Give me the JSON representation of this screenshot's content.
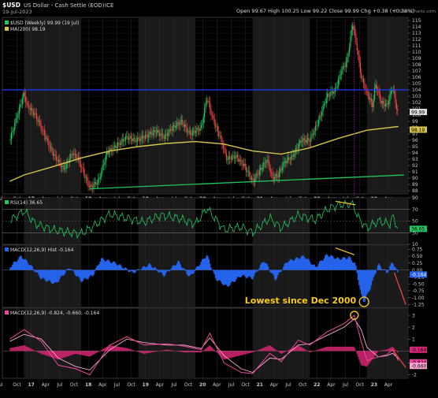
{
  "header": {
    "symbol": "$USD",
    "name": "US Dollar - Cash Settle (EOD)",
    "exchange": "ICE",
    "date": "19-Jul-2023",
    "ohlc_text": "Open 99.67  High 100.25  Low 99.22  Close 99.99  Chg +0.38 (+0.38%)",
    "watermark": "© StockCharts.com",
    "legend_main": "$USD (Weekly) 99.99 (19 Jul)",
    "legend_ma": "MA(200) 98.19",
    "colors": {
      "price_up": "#22c55e",
      "price_down": "#ef4444",
      "ma": "#d4c44a",
      "resistance": "#1e3aff",
      "support": "#22c55e"
    }
  },
  "chart_data": [
    {
      "type": "candlestick",
      "panel": "price",
      "x_tick_labels": [
        "Oct",
        "17",
        "Apr",
        "Jul",
        "Oct",
        "18",
        "Apr",
        "Jul",
        "Oct",
        "19",
        "Apr",
        "Jul",
        "Oct",
        "20",
        "Apr",
        "Jul",
        "Oct",
        "21",
        "Apr",
        "Jul",
        "Oct",
        "22",
        "Apr",
        "Jul",
        "Oct",
        "23",
        "Apr",
        "Jul"
      ],
      "y_ticks": [
        88,
        89,
        90,
        91,
        92,
        93,
        94,
        95,
        96,
        97,
        98,
        99,
        100,
        101,
        102,
        103,
        104,
        105,
        106,
        107,
        108,
        109,
        110,
        111,
        112,
        113,
        114,
        115
      ],
      "ylim": [
        87.5,
        115.5
      ],
      "last_price_label": "99.99",
      "ma_label": "98.19",
      "price_path": [
        [
          2016.75,
          96
        ],
        [
          2016.85,
          99
        ],
        [
          2016.95,
          102
        ],
        [
          2017.0,
          103.5
        ],
        [
          2017.05,
          101.5
        ],
        [
          2017.2,
          100
        ],
        [
          2017.35,
          97
        ],
        [
          2017.5,
          94
        ],
        [
          2017.65,
          92
        ],
        [
          2017.7,
          91.5
        ],
        [
          2017.85,
          94
        ],
        [
          2017.95,
          93
        ],
        [
          2018.1,
          89.5
        ],
        [
          2018.15,
          88.5
        ],
        [
          2018.3,
          89.5
        ],
        [
          2018.45,
          94
        ],
        [
          2018.6,
          95
        ],
        [
          2018.8,
          96.5
        ],
        [
          2018.95,
          96
        ],
        [
          2019.1,
          96.5
        ],
        [
          2019.3,
          97.5
        ],
        [
          2019.45,
          96.5
        ],
        [
          2019.6,
          98
        ],
        [
          2019.75,
          99
        ],
        [
          2019.9,
          97
        ],
        [
          2020.1,
          98
        ],
        [
          2020.2,
          102.8
        ],
        [
          2020.3,
          99.5
        ],
        [
          2020.45,
          96
        ],
        [
          2020.55,
          93
        ],
        [
          2020.7,
          93.5
        ],
        [
          2020.85,
          92
        ],
        [
          2021.0,
          89.5
        ],
        [
          2021.15,
          91.5
        ],
        [
          2021.25,
          93
        ],
        [
          2021.35,
          90
        ],
        [
          2021.45,
          90.5
        ],
        [
          2021.55,
          92.5
        ],
        [
          2021.7,
          93.5
        ],
        [
          2021.85,
          96
        ],
        [
          2022.0,
          96
        ],
        [
          2022.15,
          99
        ],
        [
          2022.3,
          103
        ],
        [
          2022.45,
          104
        ],
        [
          2022.55,
          107
        ],
        [
          2022.65,
          108.5
        ],
        [
          2022.75,
          114.5
        ],
        [
          2022.82,
          111
        ],
        [
          2022.9,
          106
        ],
        [
          2023.0,
          103.5
        ],
        [
          2023.1,
          101.5
        ],
        [
          2023.15,
          105
        ],
        [
          2023.25,
          102
        ],
        [
          2023.35,
          101.5
        ],
        [
          2023.45,
          104.5
        ],
        [
          2023.5,
          102
        ],
        [
          2023.55,
          99.99
        ]
      ],
      "ma200_path": [
        [
          2016.75,
          89.5
        ],
        [
          2017.0,
          90.5
        ],
        [
          2017.5,
          91.8
        ],
        [
          2018.0,
          93.2
        ],
        [
          2018.5,
          94.3
        ],
        [
          2019.0,
          95.0
        ],
        [
          2019.5,
          95.5
        ],
        [
          2020.0,
          95.8
        ],
        [
          2020.5,
          95.4
        ],
        [
          2021.0,
          94.3
        ],
        [
          2021.5,
          93.8
        ],
        [
          2022.0,
          94.8
        ],
        [
          2022.5,
          96.3
        ],
        [
          2023.0,
          97.6
        ],
        [
          2023.55,
          98.19
        ]
      ],
      "resistance_level": 104,
      "support_line": [
        [
          2018.15,
          88.3
        ],
        [
          2023.65,
          90.5
        ]
      ]
    },
    {
      "type": "line",
      "panel": "rsi",
      "legend": "RSI(14) 36.65",
      "y_ticks": [
        10,
        30,
        50,
        70,
        90
      ],
      "ylim": [
        10,
        90
      ],
      "last_value_label": "36.65",
      "levels": [
        30,
        50,
        70
      ],
      "path": [
        [
          2016.75,
          50
        ],
        [
          2017.0,
          68
        ],
        [
          2017.2,
          45
        ],
        [
          2017.5,
          35
        ],
        [
          2017.7,
          32
        ],
        [
          2018.0,
          28
        ],
        [
          2018.2,
          40
        ],
        [
          2018.5,
          62
        ],
        [
          2018.8,
          55
        ],
        [
          2019.1,
          48
        ],
        [
          2019.4,
          60
        ],
        [
          2019.7,
          55
        ],
        [
          2020.0,
          45
        ],
        [
          2020.2,
          72
        ],
        [
          2020.5,
          35
        ],
        [
          2020.8,
          40
        ],
        [
          2021.0,
          30
        ],
        [
          2021.3,
          55
        ],
        [
          2021.5,
          38
        ],
        [
          2021.8,
          60
        ],
        [
          2022.1,
          52
        ],
        [
          2022.3,
          70
        ],
        [
          2022.5,
          78
        ],
        [
          2022.75,
          80
        ],
        [
          2022.85,
          55
        ],
        [
          2023.0,
          38
        ],
        [
          2023.2,
          50
        ],
        [
          2023.4,
          45
        ],
        [
          2023.45,
          58
        ],
        [
          2023.55,
          36.65
        ]
      ]
    },
    {
      "type": "bar",
      "panel": "macd_hist",
      "legend": "MACD(12,26,9) Hist -0.164",
      "y_ticks": [
        0.75,
        0.5,
        0.25,
        0,
        -0.25,
        -0.5,
        -0.75,
        -1.0,
        -1.25
      ],
      "ylim": [
        -1.35,
        0.9
      ],
      "last_value_label": "-0.164",
      "annotation": "Lowest since Dec 2000",
      "path": [
        [
          2016.75,
          0.1
        ],
        [
          2016.95,
          0.5
        ],
        [
          2017.1,
          0.2
        ],
        [
          2017.3,
          -0.3
        ],
        [
          2017.55,
          -0.5
        ],
        [
          2017.8,
          0.1
        ],
        [
          2018.0,
          -0.4
        ],
        [
          2018.2,
          -0.2
        ],
        [
          2018.35,
          0.4
        ],
        [
          2018.6,
          0.25
        ],
        [
          2018.9,
          -0.1
        ],
        [
          2019.2,
          0.2
        ],
        [
          2019.45,
          -0.2
        ],
        [
          2019.7,
          0.3
        ],
        [
          2019.9,
          -0.25
        ],
        [
          2020.2,
          0.55
        ],
        [
          2020.35,
          -0.3
        ],
        [
          2020.55,
          -0.6
        ],
        [
          2020.8,
          -0.2
        ],
        [
          2021.0,
          -0.3
        ],
        [
          2021.2,
          0.35
        ],
        [
          2021.4,
          -0.35
        ],
        [
          2021.6,
          0.3
        ],
        [
          2021.9,
          0.5
        ],
        [
          2022.1,
          0.1
        ],
        [
          2022.3,
          0.55
        ],
        [
          2022.5,
          0.4
        ],
        [
          2022.7,
          0.45
        ],
        [
          2022.8,
          0.2
        ],
        [
          2022.9,
          -0.9
        ],
        [
          2022.95,
          -1.15
        ],
        [
          2023.05,
          -0.7
        ],
        [
          2023.2,
          0.2
        ],
        [
          2023.35,
          -0.1
        ],
        [
          2023.45,
          0.3
        ],
        [
          2023.55,
          -0.164
        ]
      ]
    },
    {
      "type": "line",
      "panel": "macd",
      "legend": "MACD(12,26,9) -0.824, -0.660, -0.164",
      "y_ticks": [
        3,
        2,
        1,
        0,
        -1,
        -2
      ],
      "ylim": [
        -2.3,
        3.6
      ],
      "last_value_labels": [
        "-0.164",
        "-0.824",
        "-0.660"
      ],
      "macd_path": [
        [
          2016.75,
          1.0
        ],
        [
          2017.0,
          1.8
        ],
        [
          2017.3,
          0.8
        ],
        [
          2017.6,
          -1.2
        ],
        [
          2017.9,
          -1.5
        ],
        [
          2018.15,
          -2.0
        ],
        [
          2018.5,
          0.5
        ],
        [
          2018.8,
          1.2
        ],
        [
          2019.1,
          0.5
        ],
        [
          2019.5,
          0.6
        ],
        [
          2019.8,
          0.4
        ],
        [
          2020.1,
          0.1
        ],
        [
          2020.25,
          1.5
        ],
        [
          2020.5,
          -1.0
        ],
        [
          2020.8,
          -1.8
        ],
        [
          2021.0,
          -1.9
        ],
        [
          2021.3,
          -0.2
        ],
        [
          2021.5,
          -0.9
        ],
        [
          2021.8,
          0.9
        ],
        [
          2022.0,
          0.5
        ],
        [
          2022.3,
          1.6
        ],
        [
          2022.6,
          2.3
        ],
        [
          2022.78,
          3.0
        ],
        [
          2022.9,
          0.8
        ],
        [
          2023.0,
          -0.8
        ],
        [
          2023.2,
          -0.5
        ],
        [
          2023.35,
          -0.3
        ],
        [
          2023.45,
          0.1
        ],
        [
          2023.55,
          -0.824
        ]
      ],
      "signal_path": [
        [
          2016.75,
          0.8
        ],
        [
          2017.0,
          1.4
        ],
        [
          2017.3,
          1.0
        ],
        [
          2017.6,
          -0.6
        ],
        [
          2017.9,
          -1.3
        ],
        [
          2018.15,
          -1.6
        ],
        [
          2018.5,
          0.1
        ],
        [
          2018.8,
          1.0
        ],
        [
          2019.1,
          0.7
        ],
        [
          2019.5,
          0.5
        ],
        [
          2019.8,
          0.5
        ],
        [
          2020.1,
          0.2
        ],
        [
          2020.25,
          1.1
        ],
        [
          2020.5,
          -0.4
        ],
        [
          2020.8,
          -1.5
        ],
        [
          2021.0,
          -1.8
        ],
        [
          2021.3,
          -0.6
        ],
        [
          2021.5,
          -0.7
        ],
        [
          2021.8,
          0.5
        ],
        [
          2022.0,
          0.6
        ],
        [
          2022.3,
          1.3
        ],
        [
          2022.6,
          2.0
        ],
        [
          2022.78,
          2.7
        ],
        [
          2022.9,
          1.8
        ],
        [
          2023.0,
          0.3
        ],
        [
          2023.2,
          -0.5
        ],
        [
          2023.35,
          -0.4
        ],
        [
          2023.45,
          -0.2
        ],
        [
          2023.55,
          -0.66
        ]
      ]
    }
  ]
}
